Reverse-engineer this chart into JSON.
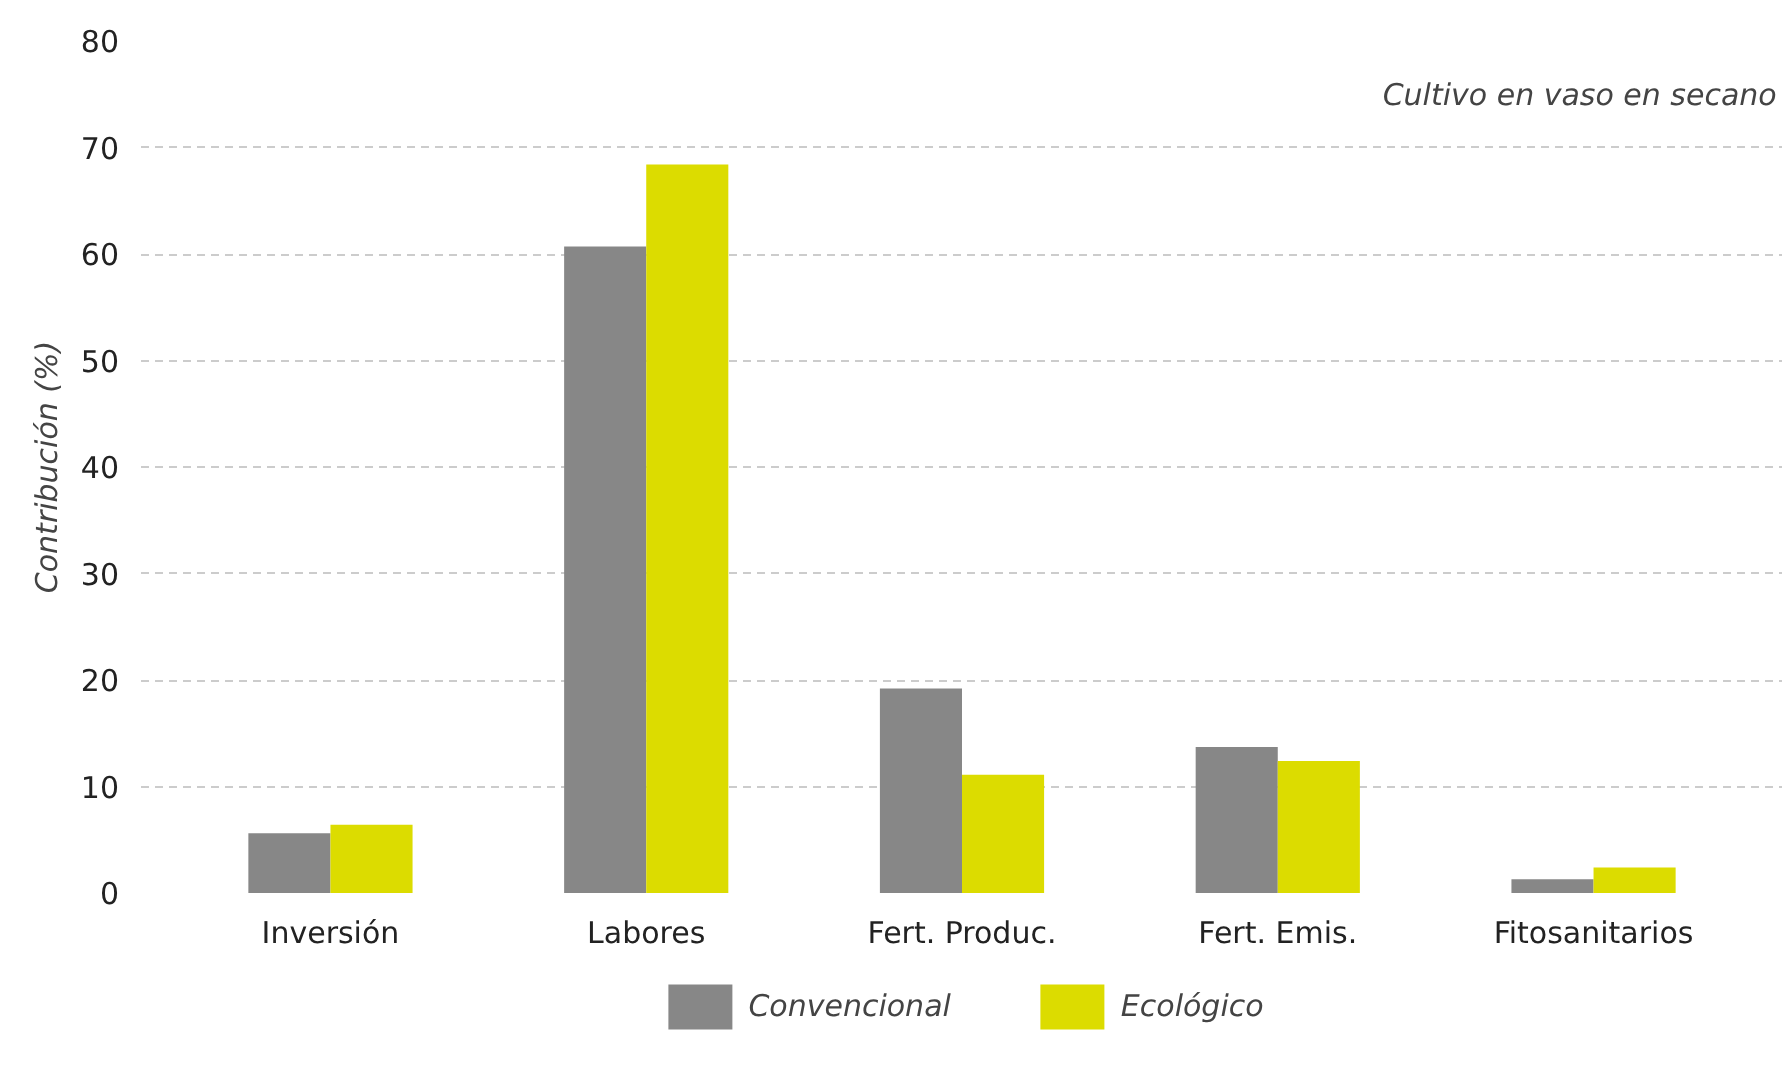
{
  "chart_data": {
    "type": "bar",
    "ylabel": "Contribución (%)",
    "annotations": [
      "Cultivo en vaso en secano"
    ],
    "categories": [
      "Inversión",
      "Labores",
      "Fert. Produc.",
      "Fert. Emis.",
      "Fitosanitarios"
    ],
    "series": [
      {
        "name": "Convencional",
        "color": "#878787",
        "values": [
          5.6,
          60.7,
          19.2,
          13.7,
          1.3
        ]
      },
      {
        "name": "Ecológico",
        "color": "#dcdc00",
        "values": [
          6.4,
          68.4,
          11.1,
          12.4,
          2.4
        ]
      }
    ],
    "ylim": [
      0,
      80
    ],
    "yticks": [
      0,
      10,
      20,
      30,
      40,
      50,
      60,
      70,
      80
    ],
    "grid": "y",
    "legend": "bottom"
  }
}
